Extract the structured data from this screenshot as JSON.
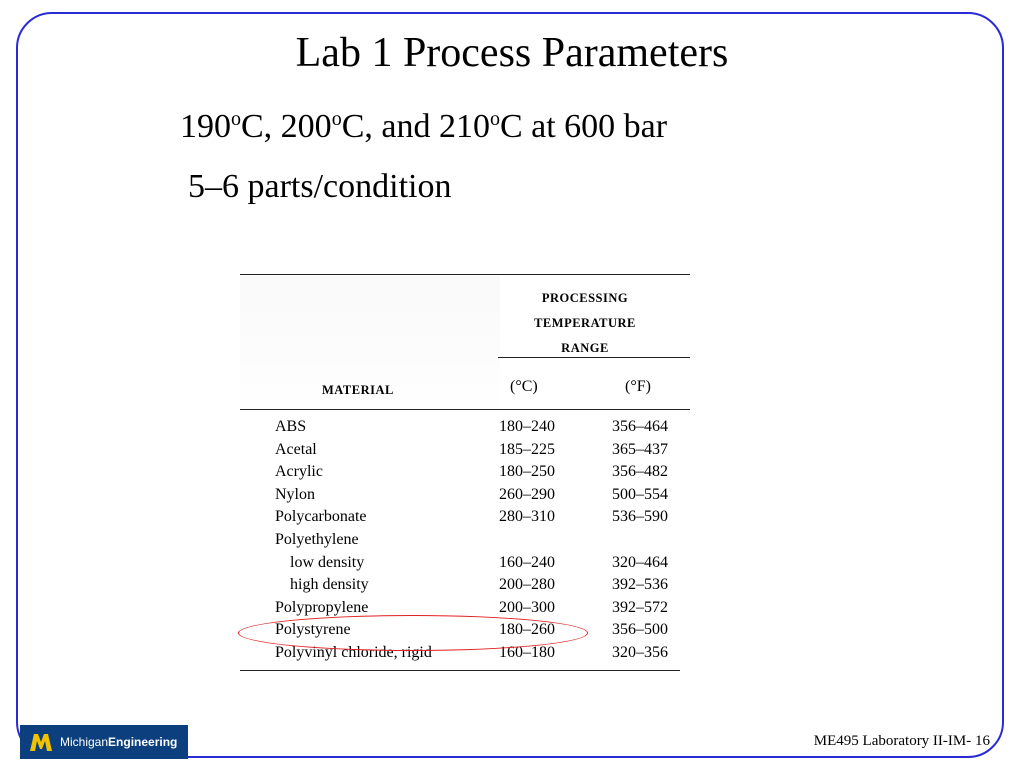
{
  "slide": {
    "title": "Lab 1 Process Parameters",
    "line1": {
      "t1": "190",
      "sup1": "o",
      "t2": "C, 200",
      "sup2": "o",
      "t3": "C, and 210",
      "sup3": "o",
      "t4": "C  at  600 bar"
    },
    "line2": "5–6 parts/condition",
    "footer": "ME495 Laboratory II-IM- 16",
    "logo": {
      "prefix": "Michigan",
      "bold": "Engineering"
    },
    "colors": {
      "frame": "#2a2ad6",
      "highlight": "#e02020",
      "logo_bg": "#0b3f7e",
      "logo_mark": "#f2c200"
    }
  },
  "table": {
    "group_header": [
      "PROCESSING",
      "TEMPERATURE",
      "RANGE"
    ],
    "material_header": "MATERIAL",
    "c_header": "(°C)",
    "f_header": "(°F)",
    "rows": [
      {
        "material": "ABS",
        "c": "180–240",
        "f": "356–464"
      },
      {
        "material": "Acetal",
        "c": "185–225",
        "f": "365–437"
      },
      {
        "material": "Acrylic",
        "c": "180–250",
        "f": "356–482"
      },
      {
        "material": "Nylon",
        "c": "260–290",
        "f": "500–554"
      },
      {
        "material": "Polycarbonate",
        "c": "280–310",
        "f": "536–590"
      },
      {
        "material": "Polyethylene",
        "c": "",
        "f": ""
      },
      {
        "material": "low density",
        "c": "160–240",
        "f": "320–464"
      },
      {
        "material": "high density",
        "c": "200–280",
        "f": "392–536"
      },
      {
        "material": "Polypropylene",
        "c": "200–300",
        "f": "392–572"
      },
      {
        "material": "Polystyrene",
        "c": "180–260",
        "f": "356–500"
      },
      {
        "material": "Polyvinyl chloride, rigid",
        "c": "160–180",
        "f": "320–356"
      }
    ],
    "highlighted_row": "Polystyrene"
  }
}
